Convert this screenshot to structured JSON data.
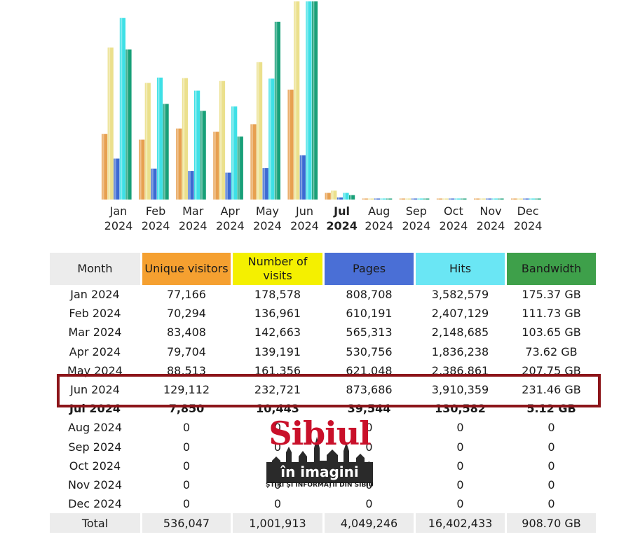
{
  "colors": {
    "visitors": "#f5a030",
    "visits": "#f4f000",
    "pages": "#4a6fd6",
    "hits": "#6ae6f4",
    "bandwidth": "#3ea04a",
    "highlight_border": "#8c1419",
    "header_bg": "#ececec"
  },
  "chart_data": {
    "type": "bar",
    "categories": [
      "Jan 2024",
      "Feb 2024",
      "Mar 2024",
      "Apr 2024",
      "May 2024",
      "Jun 2024",
      "Jul 2024",
      "Aug 2024",
      "Sep 2024",
      "Oct 2024",
      "Nov 2024",
      "Dec 2024"
    ],
    "current_category": "Jul 2024",
    "series": [
      {
        "name": "Unique visitors",
        "color": "#e7a050",
        "values": [
          77166,
          70294,
          83408,
          79704,
          88513,
          129112,
          7850,
          0,
          0,
          0,
          0,
          0
        ]
      },
      {
        "name": "Number of visits",
        "color": "#ebe08c",
        "values": [
          178578,
          136961,
          142663,
          139191,
          161356,
          232721,
          10443,
          0,
          0,
          0,
          0,
          0
        ]
      },
      {
        "name": "Pages",
        "color": "#3c6ad2",
        "values": [
          808708,
          610191,
          565313,
          530756,
          621048,
          873686,
          39544,
          0,
          0,
          0,
          0,
          0
        ]
      },
      {
        "name": "Hits",
        "color": "#3ee0e6",
        "values": [
          3582579,
          2407129,
          2148685,
          1836238,
          2386861,
          3910359,
          130582,
          0,
          0,
          0,
          0,
          0
        ]
      },
      {
        "name": "Bandwidth",
        "color": "#18a078",
        "values": [
          175.37,
          111.73,
          103.65,
          73.62,
          207.75,
          231.46,
          5.12,
          0,
          0,
          0,
          0,
          0
        ]
      }
    ]
  },
  "month_labels": [
    {
      "month": "Jan",
      "year": "2024"
    },
    {
      "month": "Feb",
      "year": "2024"
    },
    {
      "month": "Mar",
      "year": "2024"
    },
    {
      "month": "Apr",
      "year": "2024"
    },
    {
      "month": "May",
      "year": "2024"
    },
    {
      "month": "Jun",
      "year": "2024"
    },
    {
      "month": "Jul",
      "year": "2024"
    },
    {
      "month": "Aug",
      "year": "2024"
    },
    {
      "month": "Sep",
      "year": "2024"
    },
    {
      "month": "Oct",
      "year": "2024"
    },
    {
      "month": "Nov",
      "year": "2024"
    },
    {
      "month": "Dec",
      "year": "2024"
    }
  ],
  "table": {
    "headers": [
      "Month",
      "Unique visitors",
      "Number of visits",
      "Pages",
      "Hits",
      "Bandwidth"
    ],
    "rows": [
      [
        "Jan 2024",
        "77,166",
        "178,578",
        "808,708",
        "3,582,579",
        "175.37 GB"
      ],
      [
        "Feb 2024",
        "70,294",
        "136,961",
        "610,191",
        "2,407,129",
        "111.73 GB"
      ],
      [
        "Mar 2024",
        "83,408",
        "142,663",
        "565,313",
        "2,148,685",
        "103.65 GB"
      ],
      [
        "Apr 2024",
        "79,704",
        "139,191",
        "530,756",
        "1,836,238",
        "73.62 GB"
      ],
      [
        "May 2024",
        "88,513",
        "161,356",
        "621,048",
        "2,386,861",
        "207.75 GB"
      ],
      [
        "Jun 2024",
        "129,112",
        "232,721",
        "873,686",
        "3,910,359",
        "231.46 GB"
      ],
      [
        "Jul 2024",
        "7,850",
        "10,443",
        "39,544",
        "130,582",
        "5.12 GB"
      ],
      [
        "Aug 2024",
        "0",
        "0",
        "0",
        "0",
        "0"
      ],
      [
        "Sep 2024",
        "0",
        "0",
        "0",
        "0",
        "0"
      ],
      [
        "Oct 2024",
        "0",
        "0",
        "0",
        "0",
        "0"
      ],
      [
        "Nov 2024",
        "0",
        "0",
        "0",
        "0",
        "0"
      ],
      [
        "Dec 2024",
        "0",
        "0",
        "0",
        "0",
        "0"
      ]
    ],
    "total": [
      "Total",
      "536,047",
      "1,001,913",
      "4,049,246",
      "16,402,433",
      "908.70 GB"
    ],
    "highlighted_row": "Jun 2024",
    "current_row": "Jul 2024"
  },
  "watermark": {
    "line1": "Sibiul",
    "line2": "în imagini",
    "line3": "ȘTIRI ȘI INFORMAȚII DIN SIBIU"
  }
}
